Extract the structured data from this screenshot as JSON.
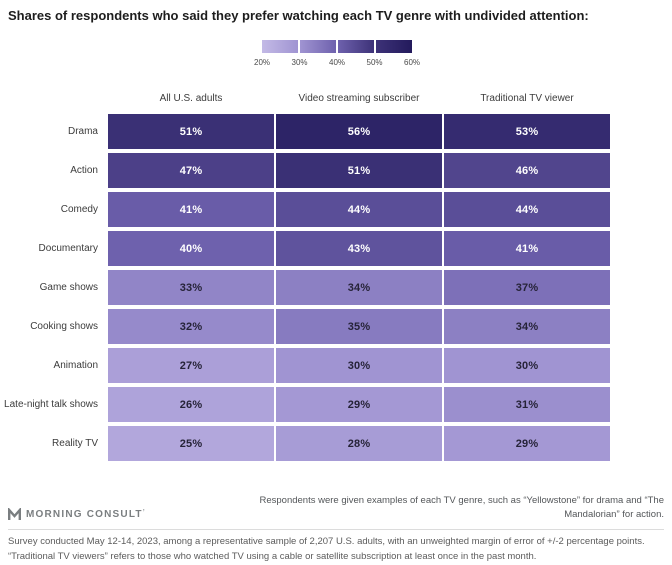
{
  "title": "Shares of respondents who said they prefer watching each TV genre with undivided attention:",
  "chart_data": {
    "type": "heatmap",
    "title": "Shares of respondents who said they prefer watching each TV genre with undivided attention:",
    "columns": [
      "All U.S. adults",
      "Video streaming subscriber",
      "Traditional TV viewer"
    ],
    "rows": [
      {
        "label": "Drama",
        "values": [
          51,
          56,
          53
        ]
      },
      {
        "label": "Action",
        "values": [
          47,
          51,
          46
        ]
      },
      {
        "label": "Comedy",
        "values": [
          41,
          44,
          44
        ]
      },
      {
        "label": "Documentary",
        "values": [
          40,
          43,
          41
        ]
      },
      {
        "label": "Game shows",
        "values": [
          33,
          34,
          37
        ]
      },
      {
        "label": "Cooking shows",
        "values": [
          32,
          35,
          34
        ]
      },
      {
        "label": "Animation",
        "values": [
          27,
          30,
          30
        ]
      },
      {
        "label": "Late-night talk shows",
        "values": [
          26,
          29,
          31
        ]
      },
      {
        "label": "Reality TV",
        "values": [
          25,
          28,
          29
        ]
      }
    ],
    "value_suffix": "%",
    "color_scale": {
      "min": 20,
      "max": 60,
      "tick_labels": [
        "20%",
        "30%",
        "40%",
        "50%",
        "60%"
      ],
      "stop_values": [
        20,
        30,
        40,
        50,
        60
      ],
      "stop_colors": [
        "#c3bae6",
        "#a094d2",
        "#6e61ad",
        "#3d3278",
        "#231a5c"
      ],
      "light_text_threshold": 40,
      "text_light": "#ffffff",
      "text_dark": "#262338"
    },
    "legend_position": "top-center",
    "grid": false
  },
  "footer": {
    "note": "Respondents were given examples of each TV genre, such as “Yellowstone” for drama and “The Mandalorian” for action.",
    "brand": "MORNING CONSULT",
    "brand_mark": "’",
    "footnote": "Survey conducted May 12-14, 2023, among a representative sample of 2,207 U.S. adults, with an unweighted margin of error of +/-2 percentage points. “Traditional TV viewers” refers to those who watched TV using a cable or satellite subscription at least once in the past month."
  }
}
